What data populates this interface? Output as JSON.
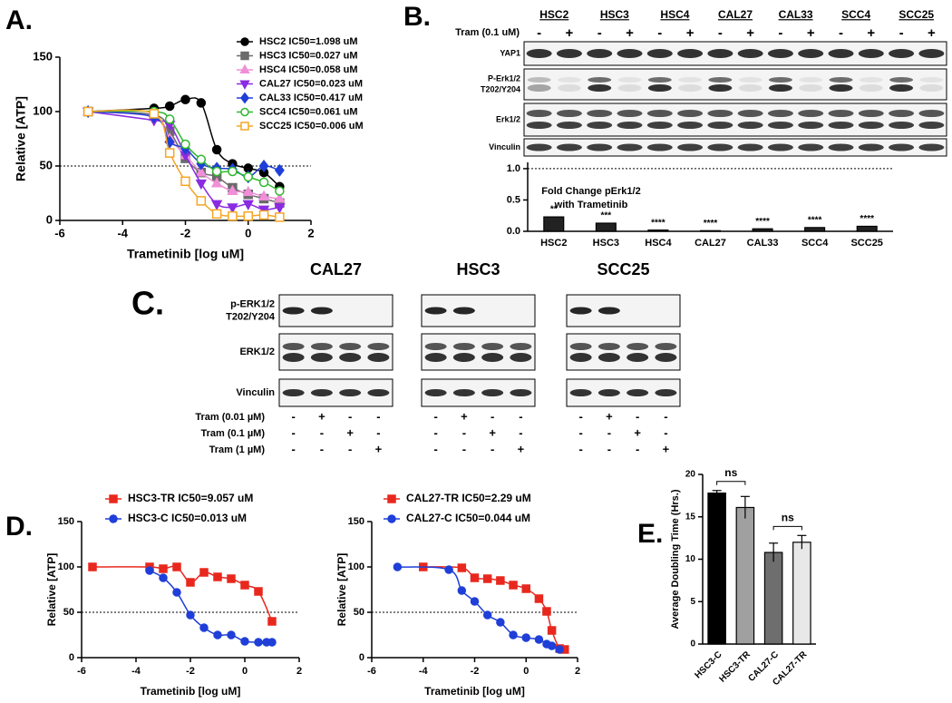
{
  "chart_data": [
    {
      "type": "line",
      "panel_label": "A.",
      "xlabel": "Trametinib [log uM]",
      "ylabel": "Relative [ATP]",
      "xlim": [
        -6,
        2
      ],
      "ylim": [
        0,
        150
      ],
      "xticks": [
        -6,
        -4,
        -2,
        0,
        2
      ],
      "yticks": [
        0,
        50,
        100,
        150
      ],
      "reference_line": 50,
      "x": [
        -5.1,
        -3,
        -2.5,
        -2,
        -1.5,
        -1,
        -0.5,
        0,
        0.5,
        1
      ],
      "series": [
        {
          "name": "HSC2 IC50=1.098 uM",
          "color": "#000000",
          "marker": "circle",
          "filled": true,
          "values": [
            100,
            103,
            105,
            111,
            108,
            65,
            52,
            48,
            44,
            31
          ]
        },
        {
          "name": "HSC3 IC50=0.027 uM",
          "color": "#6b6b6b",
          "marker": "square",
          "filled": true,
          "values": [
            100,
            97,
            82,
            57,
            44,
            40,
            30,
            24,
            20,
            16
          ]
        },
        {
          "name": "HSC4 IC50=0.058 uM",
          "color": "#f08fd8",
          "marker": "triangle",
          "filled": true,
          "values": [
            100,
            95,
            75,
            60,
            44,
            34,
            27,
            26,
            22,
            20
          ]
        },
        {
          "name": "CAL27 IC50=0.023 uM",
          "color": "#8a2be2",
          "marker": "triangle-down",
          "filled": true,
          "values": [
            100,
            92,
            88,
            60,
            34,
            15,
            12,
            15,
            10,
            12
          ]
        },
        {
          "name": "CAL33 IC50=0.417 uM",
          "color": "#1f3fd8",
          "marker": "diamond",
          "filled": true,
          "values": [
            100,
            95,
            72,
            66,
            52,
            48,
            47,
            40,
            50,
            46
          ]
        },
        {
          "name": "SCC4 IC50=0.061 uM",
          "color": "#2eb82e",
          "marker": "circle",
          "filled": false,
          "values": [
            100,
            100,
            93,
            70,
            56,
            45,
            45,
            40,
            35,
            27
          ]
        },
        {
          "name": "SCC25 IC50=0.006 uM",
          "color": "#f5a623",
          "marker": "square",
          "filled": false,
          "values": [
            100,
            98,
            62,
            36,
            18,
            6,
            4,
            4,
            5,
            3
          ]
        }
      ]
    },
    {
      "type": "bar",
      "title": [
        "Fold Change pErk1/2",
        "with Trametinib"
      ],
      "categories": [
        "HSC2",
        "HSC3",
        "HSC4",
        "CAL27",
        "CAL33",
        "SCC4",
        "SCC25"
      ],
      "values": [
        0.23,
        0.13,
        0.02,
        0.01,
        0.04,
        0.06,
        0.08
      ],
      "significance": [
        "**",
        "***",
        "****",
        "****",
        "****",
        "****",
        "****"
      ],
      "color": "#222222",
      "ylim": [
        0,
        1.1
      ],
      "yticks": [
        {
          "value": 0,
          "label": "0.0"
        },
        0.5,
        {
          "value": 1,
          "label": "1.0"
        }
      ],
      "reference_line": 1
    },
    {
      "type": "line",
      "panel_label": "D.",
      "xlabel": "Trametinib [log uM]",
      "ylabel": "Relative [ATP]",
      "xlim": [
        -6,
        2
      ],
      "ylim": [
        0,
        150
      ],
      "xticks": [
        -6,
        -4,
        -2,
        0,
        2
      ],
      "yticks": [
        0,
        50,
        100,
        150
      ],
      "reference_line": 50,
      "series": [
        {
          "name": "HSC3-TR IC50=9.057 uM",
          "color": "#e8281e",
          "marker": "square",
          "filled": true,
          "x": [
            -5.6,
            -3.5,
            -3,
            -2.5,
            -2,
            -1.5,
            -1,
            -0.5,
            0,
            0.5,
            1
          ],
          "values": [
            100,
            100,
            98,
            100,
            83,
            94,
            89,
            87,
            80,
            73,
            40
          ]
        },
        {
          "name": "HSC3-C IC50=0.013 uM",
          "color": "#1f3fd8",
          "marker": "circle",
          "filled": true,
          "x": [
            -3.5,
            -3,
            -2.5,
            -2,
            -1.5,
            -1,
            -0.5,
            0,
            0.5,
            0.8,
            1
          ],
          "values": [
            96,
            88,
            72,
            47,
            33,
            25,
            25,
            18,
            17,
            17,
            17
          ]
        }
      ]
    },
    {
      "type": "line",
      "xlabel": "Trametinib [log uM]",
      "ylabel": "Relative [ATP]",
      "xlim": [
        -6,
        2
      ],
      "ylim": [
        0,
        150
      ],
      "xticks": [
        -6,
        -4,
        -2,
        0,
        2
      ],
      "yticks": [
        0,
        50,
        100,
        150
      ],
      "reference_line": 50,
      "series": [
        {
          "name": "CAL27-TR IC50=2.29 uM",
          "color": "#e8281e",
          "marker": "square",
          "filled": true,
          "x": [
            -4,
            -2.5,
            -2,
            -1.5,
            -1,
            -0.5,
            0,
            0.5,
            0.8,
            1,
            1.3,
            1.5
          ],
          "values": [
            100,
            99,
            88,
            87,
            85,
            80,
            76,
            65,
            51,
            30,
            10,
            9
          ]
        },
        {
          "name": "CAL27-C IC50=0.044 uM",
          "color": "#1f3fd8",
          "marker": "circle",
          "filled": true,
          "x": [
            -5,
            -3,
            -2.5,
            -2,
            -1.5,
            -1,
            -0.5,
            0,
            0.5,
            0.8,
            1,
            1.3
          ],
          "values": [
            100,
            97,
            74,
            62,
            47,
            39,
            25,
            22,
            20,
            15,
            13,
            9
          ]
        }
      ]
    },
    {
      "type": "bar",
      "panel_label": "E.",
      "ylabel": "Average Doubling Time (Hrs.)",
      "categories": [
        "HSC3-C",
        "HSC3-TR",
        "CAL27-C",
        "CAL27-TR"
      ],
      "values": [
        17.8,
        16.1,
        10.8,
        12.0
      ],
      "errors": [
        0.3,
        1.3,
        1.1,
        0.8
      ],
      "colors": [
        "#000000",
        "#a0a0a0",
        "#6e6e6e",
        "#e8e8e8"
      ],
      "ylim": [
        0,
        20
      ],
      "yticks": [
        0,
        5,
        10,
        15,
        20
      ],
      "comparisons": [
        {
          "label": "ns"
        },
        {
          "label": "ns"
        }
      ]
    }
  ],
  "blots": {
    "B": {
      "panel_label": "B.",
      "treatment_label": "Tram (0.1 uM)",
      "cell_lines": [
        "HSC2",
        "HSC3",
        "HSC4",
        "CAL27",
        "CAL33",
        "SCC4",
        "SCC25"
      ],
      "lanes": [
        "-",
        "+",
        "-",
        "+",
        "-",
        "+",
        "-",
        "+",
        "-",
        "+",
        "-",
        "+",
        "-",
        "+"
      ],
      "rows": [
        [
          "YAP1"
        ],
        [
          "P-Erk1/2",
          "T202/Y204"
        ],
        [
          "Erk1/2"
        ],
        [
          "Vinculin"
        ]
      ]
    },
    "C": {
      "panel_label": "C.",
      "groups": [
        "CAL27",
        "HSC3",
        "SCC25"
      ],
      "rows": [
        [
          "p-ERK1/2",
          "T202/Y204"
        ],
        [
          "ERK1/2"
        ],
        [
          "Vinculin"
        ]
      ],
      "conditions": [
        {
          "label": "Tram (0.01 µM)",
          "lanes": [
            "-",
            "+",
            "-",
            "-"
          ]
        },
        {
          "label": "Tram (0.1 µM)",
          "lanes": [
            "-",
            "-",
            "+",
            "-"
          ]
        },
        {
          "label": "Tram (1 µM)",
          "lanes": [
            "-",
            "-",
            "-",
            "+"
          ]
        }
      ]
    }
  }
}
